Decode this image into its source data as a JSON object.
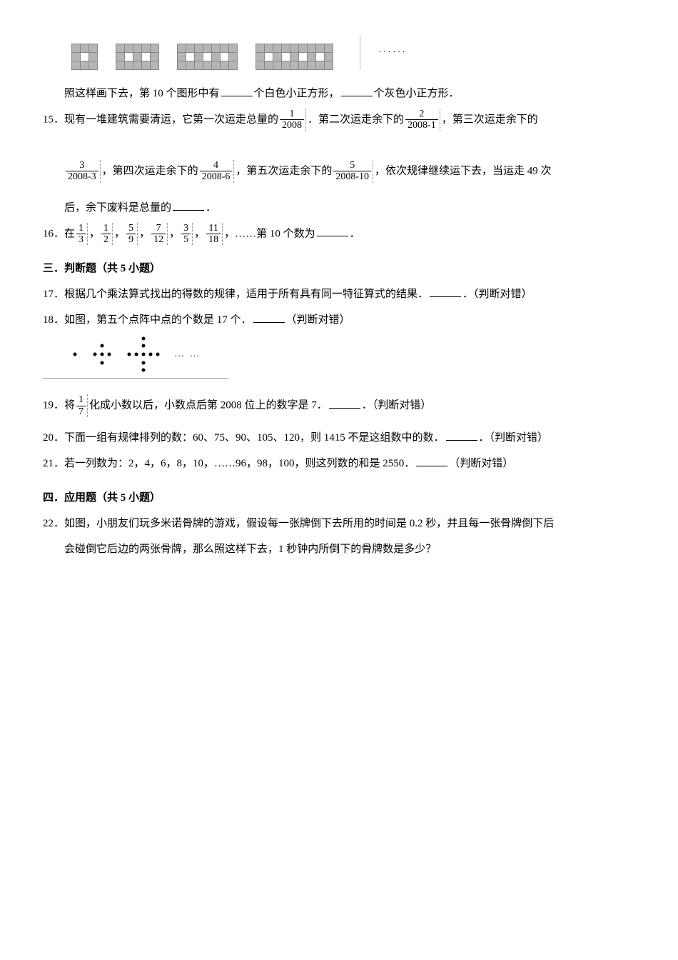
{
  "q14": {
    "grids": [
      {
        "rows": 3,
        "cols": 3,
        "white_cols": [
          1
        ]
      },
      {
        "rows": 3,
        "cols": 5,
        "white_cols": [
          1,
          3
        ]
      },
      {
        "rows": 3,
        "cols": 7,
        "white_cols": [
          1,
          3,
          5
        ]
      },
      {
        "rows": 3,
        "cols": 9,
        "white_cols": [
          1,
          3,
          5,
          7
        ]
      }
    ],
    "ellipsis": "······",
    "line": "照这样画下去，第 10 个图形中有",
    "mid": "个白色小正方形，",
    "tail": "个灰色小正方形．"
  },
  "q15": {
    "num": "15．",
    "lead": "现有一堆建筑需要清运，它第一次运走总量的",
    "f1_num": "1",
    "f1_den": "2008",
    "after1": "．第二次运走余下的",
    "f2_num": "2",
    "f2_den": "2008-1",
    "after2": "，第三次运走余下的",
    "f3_num": "3",
    "f3_den": "2008-3",
    "after3": "，第四次运走余下的",
    "f4_num": "4",
    "f4_den": "2008-6",
    "after4": "，第五次运走余下的",
    "f5_num": "5",
    "f5_den": "2008-10",
    "after5": "，依次规律继续运下去，当运走 49 次",
    "line2": "后，余下废料是总量的",
    "period": "．"
  },
  "q16": {
    "num": "16．",
    "lead": "在",
    "fracs": [
      {
        "n": "1",
        "d": "3"
      },
      {
        "n": "1",
        "d": "2"
      },
      {
        "n": "5",
        "d": "9"
      },
      {
        "n": "7",
        "d": "12"
      },
      {
        "n": "3",
        "d": "5"
      },
      {
        "n": "11",
        "d": "18"
      }
    ],
    "sep": "，",
    "tail_lead": "……第 10 个数为",
    "period": "．"
  },
  "sec3": "三．判断题（共 5 小题）",
  "q17": {
    "num": "17．",
    "text": "根据几个乘法算式找出的得数的规律，适用于所有具有同一特征算式的结果．",
    "judge": "．（判断对错）"
  },
  "q18": {
    "num": "18．",
    "text": "如图，第五个点阵中点的个数是 17 个．",
    "judge": "（判断对错）",
    "dots_ellipsis": "… …"
  },
  "q19": {
    "num": "19．",
    "lead": "将",
    "fn": "1",
    "fd": "7",
    "mid": "化成小数以后，小数点后第 2008 位上的数字是 7．",
    "judge": "．（判断对错）"
  },
  "q20": {
    "num": "20．",
    "text": "下面一组有规律排列的数：60、75、90、105、120，则 1415 不是这组数中的数．",
    "judge": "．（判断对错）"
  },
  "q21": {
    "num": "21．",
    "text": "若一列数为：2，4，6，8，10，……96，98，100，则这列数的和是 2550．",
    "judge": "（判断对错）"
  },
  "sec4": "四．应用题（共 5 小题）",
  "q22": {
    "num": "22．",
    "text": "如图，小朋友们玩多米诺骨牌的游戏，假设每一张牌倒下去所用的时间是 0.2 秒，并且每一张骨牌倒下后",
    "line2": "会碰倒它后边的两张骨牌，那么照这样下去，1 秒钟内所倒下的骨牌数是多少？"
  },
  "colors": {
    "gray_cell": "#b5b5b5",
    "border": "#888888",
    "text": "#000000",
    "background": "#ffffff"
  }
}
